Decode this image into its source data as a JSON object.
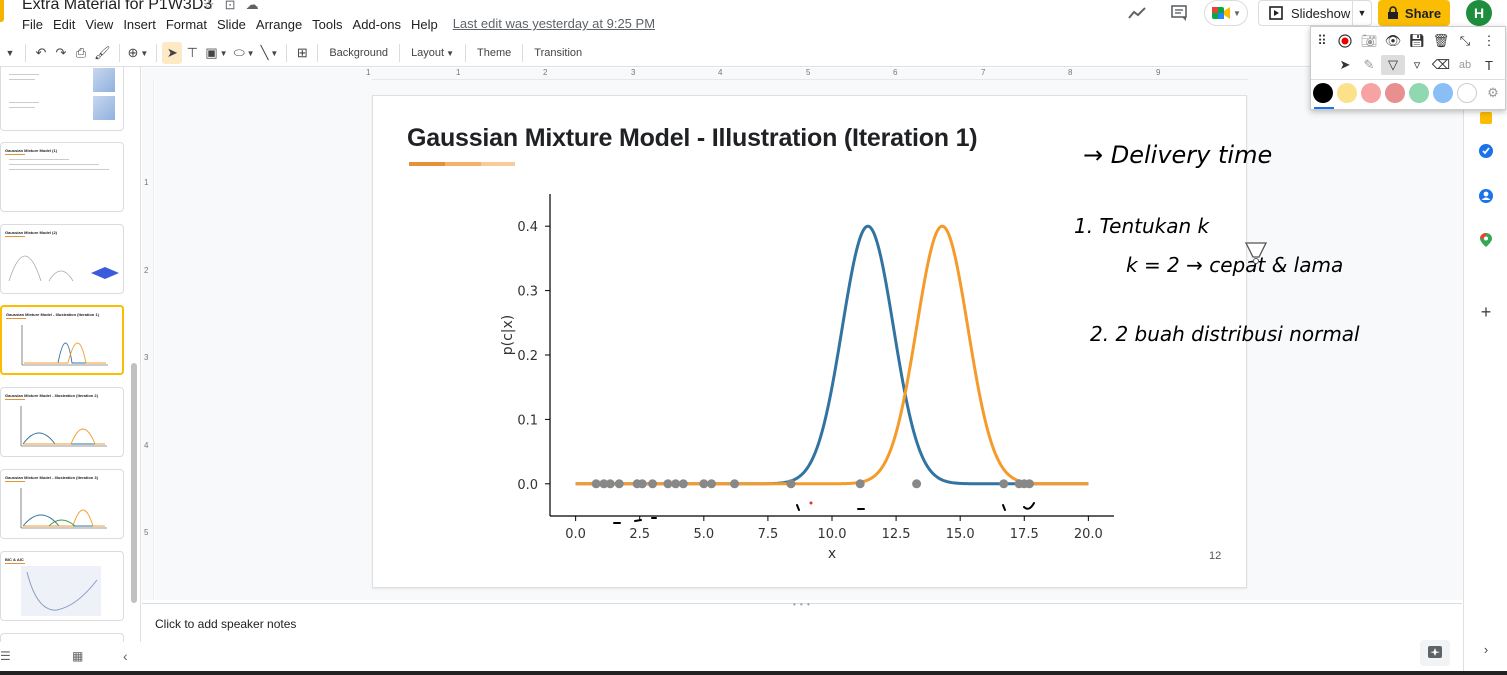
{
  "window": {
    "doc_title": "Extra Material for P1W3D3",
    "last_edit": "Last edit was yesterday at 9:25 PM"
  },
  "menu": [
    "File",
    "Edit",
    "View",
    "Insert",
    "Format",
    "Slide",
    "Arrange",
    "Tools",
    "Add-ons",
    "Help"
  ],
  "header": {
    "slideshow_label": "Slideshow",
    "share_label": "Share",
    "avatar_initial": "H"
  },
  "toolbar": {
    "background_label": "Background",
    "layout_label": "Layout",
    "theme_label": "Theme",
    "transition_label": "Transition"
  },
  "ruler": {
    "h_marks": [
      "1",
      "1",
      "2",
      "3",
      "4",
      "5",
      "6",
      "7",
      "8",
      "9"
    ],
    "v_marks": [
      "1",
      "2",
      "3",
      "4",
      "5"
    ]
  },
  "filmstrip": {
    "slides": [
      {
        "title": "",
        "active": false
      },
      {
        "title": "Gaussian Mixture Model (1)",
        "active": false
      },
      {
        "title": "Gaussian Mixture Model (2)",
        "active": false
      },
      {
        "title": "Gaussian Mixture Model - Illustration (Iteration 1)",
        "active": true
      },
      {
        "title": "Gaussian Mixture Model - Illustration (Iteration 2)",
        "active": false
      },
      {
        "title": "Gaussian Mixture Model - Illustration (Iteration 3)",
        "active": false
      },
      {
        "title": "BIC & AIC",
        "active": false
      }
    ]
  },
  "slide": {
    "title": "Gaussian Mixture Model - Illustration (Iteration 1)",
    "number": "12",
    "accent_colors": [
      "#e69138",
      "#f6b26b",
      "#f9cb9c"
    ],
    "handwriting": [
      "→ Delivery time",
      "1. Tentukan k",
      "k = 2 → cepat & lama",
      "2.  2 buah distribusi normal"
    ]
  },
  "chart_data": {
    "type": "line",
    "xlabel": "x",
    "ylabel": "p(c|x)",
    "xlim": [
      -1,
      21
    ],
    "ylim": [
      -0.05,
      0.45
    ],
    "xticks": [
      "0.0",
      "2.5",
      "5.0",
      "7.5",
      "10.0",
      "12.5",
      "15.0",
      "17.5",
      "20.0"
    ],
    "yticks": [
      "0.0",
      "0.1",
      "0.2",
      "0.3",
      "0.4"
    ],
    "series": [
      {
        "color": "#3274a1",
        "mean": 11.4,
        "std": 1.0,
        "peak": 0.4
      },
      {
        "color": "#f49b2c",
        "mean": 14.3,
        "std": 1.0,
        "peak": 0.4
      }
    ],
    "points": {
      "color": "#888888",
      "y": 0.0,
      "x": [
        0.8,
        1.1,
        1.35,
        1.7,
        2.4,
        2.6,
        3.0,
        3.6,
        3.9,
        4.2,
        5.0,
        5.3,
        6.2,
        8.4,
        11.1,
        13.3,
        16.7,
        17.3,
        17.5,
        17.7
      ]
    }
  },
  "notes": {
    "placeholder": "Click to add speaker notes"
  },
  "annotation_toolbar": {
    "colors": [
      "#000000",
      "#fce08a",
      "#f7a3a3",
      "#e88f8f",
      "#90d8b0",
      "#89bff5",
      "#ffffff"
    ]
  }
}
